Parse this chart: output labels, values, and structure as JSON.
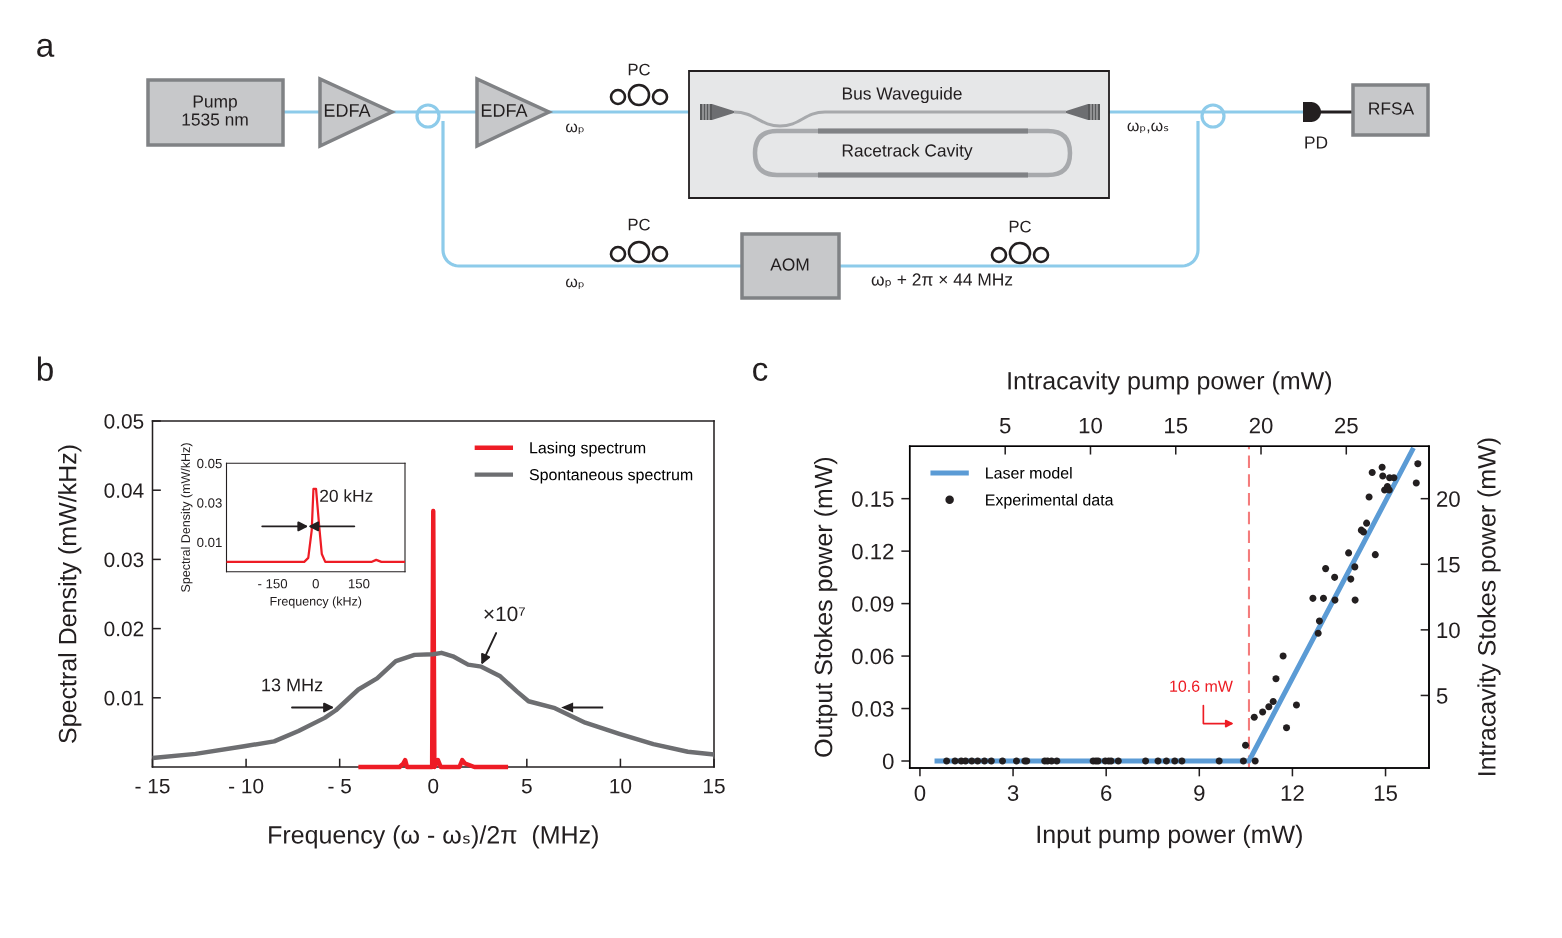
{
  "chart_data": [
    {
      "type": "other",
      "title": "a",
      "annotations": [
        "Pump\n1535 nm",
        "EDFA",
        "EDFA",
        "PC",
        "Bus Waveguide",
        "Racetrack Cavity",
        "ωₚ",
        "ωₚ,ωₛ",
        "PD",
        "RFSA",
        "PC",
        "AOM",
        "ωₚ",
        "ωₚ + 2π × 44 MHz",
        "PC"
      ]
    },
    {
      "type": "line",
      "title": "b",
      "xlabel": "Frequency (ω - ωₛ)/2π  (MHz)",
      "ylabel": "Spectral Density (mW/kHz)",
      "xlim": [
        -15,
        15
      ],
      "xticks": [
        {
          "value": -15,
          "label": "- 15"
        },
        {
          "value": -10,
          "label": "- 10"
        },
        {
          "value": -5,
          "label": "- 5"
        },
        0,
        5,
        10,
        15
      ],
      "ylim": [
        0,
        0.05
      ],
      "yticks": [
        0.01,
        0.02,
        0.03,
        0.04,
        0.05
      ],
      "series": [
        {
          "name": "Lasing spectrum",
          "color": "#ee1c25",
          "x": [
            -4,
            -1.8,
            -1.6,
            -1.5,
            -1.4,
            -0.06,
            0,
            0.06,
            0.25,
            0.4,
            1.4,
            1.55,
            1.7,
            2.2,
            4
          ],
          "values": [
            0,
            0,
            0.0005,
            0.001,
            0,
            0,
            0.037,
            0,
            0.001,
            0,
            0,
            0.001,
            0.0005,
            0,
            0
          ]
        },
        {
          "name": "Spontaneous spectrum",
          "color": "#6d6e71",
          "x": [
            -15,
            -12.7,
            -10.1,
            -8.5,
            -7.2,
            -5.8,
            -5.2,
            -4.0,
            -3.0,
            -2.0,
            -1.0,
            0,
            0.44,
            1.05,
            1.86,
            2.57,
            3.58,
            4.48,
            5.09,
            6.5,
            8.12,
            9.94,
            11.76,
            13.6,
            15
          ],
          "values": [
            0.0013,
            0.0019,
            0.003,
            0.0037,
            0.0052,
            0.0071,
            0.0082,
            0.0112,
            0.0128,
            0.0153,
            0.0162,
            0.0163,
            0.0165,
            0.016,
            0.0148,
            0.0145,
            0.0131,
            0.0109,
            0.0095,
            0.0085,
            0.0064,
            0.0048,
            0.0033,
            0.0022,
            0.0018
          ]
        }
      ],
      "annotations": [
        {
          "text": "13 MHz",
          "x": -5.3,
          "y": 0.0086
        },
        {
          "text": "×10⁷",
          "x": 2.57,
          "y": 0.0148
        }
      ],
      "legend": "top right"
    },
    {
      "type": "line",
      "xlabel": "Frequency (kHz)",
      "ylabel": "Spectral Density (mW/kHz)",
      "xlim": [
        -310,
        310
      ],
      "xticks": [
        {
          "value": -150,
          "label": "- 150"
        },
        0,
        150
      ],
      "ylim": [
        -0.005,
        0.05
      ],
      "yticks": [
        0.01,
        0.03,
        0.05
      ],
      "series": [
        {
          "color": "#ee1c25",
          "x": [
            -310,
            -40,
            -26,
            -14,
            -8,
            1,
            12,
            21,
            33,
            195,
            210,
            228,
            310
          ],
          "values": [
            0,
            0,
            0.002,
            0.016,
            0.037,
            0.037,
            0.018,
            0.004,
            0,
            0,
            0.001,
            0,
            0
          ]
        }
      ],
      "annotations": [
        {
          "text": "20 kHz",
          "x": -26,
          "y": 0.018
        }
      ]
    },
    {
      "type": "scatter",
      "title": "c",
      "xlabel": "Input pump power (mW)",
      "ylabel": "Output Stokes power (mW)",
      "x2label": "Intracavity pump power (mW)",
      "y2label": "Intracavity Stokes power (mW)",
      "xlim": [
        -0.33,
        16.4
      ],
      "xticks": [
        0,
        3,
        6,
        9,
        12,
        15
      ],
      "ylim": [
        -0.004,
        0.18
      ],
      "yticks": [
        0,
        0.03,
        0.06,
        0.09,
        0.12,
        0.15
      ],
      "x2lim": [
        -0.6,
        29.85
      ],
      "x2ticks": [
        5,
        10,
        15,
        20,
        25
      ],
      "y2lim": [
        -0.53,
        24.0
      ],
      "y2ticks": [
        5,
        10,
        15,
        20
      ],
      "series": [
        {
          "name": "Laser model",
          "type": "line",
          "color": "#5b9bd5",
          "x": [
            0.47,
            10.6,
            15.9
          ],
          "values": [
            0,
            0,
            0.179
          ]
        },
        {
          "name": "Experimental data",
          "type": "scatter",
          "marker": "circle",
          "color": "#231f20",
          "x": [
            0.86,
            1.13,
            1.33,
            1.47,
            1.67,
            1.86,
            2.08,
            2.3,
            2.66,
            3.11,
            3.38,
            3.44,
            4.02,
            4.11,
            4.24,
            4.41,
            5.58,
            5.67,
            5.74,
            5.97,
            6.08,
            6.16,
            6.39,
            7.27,
            7.67,
            7.94,
            8.21,
            8.44,
            9.64,
            10.42,
            10.8,
            10.49,
            10.77,
            11.04,
            11.24,
            11.38,
            11.47,
            11.7,
            11.81,
            12.13,
            12.66,
            12.83,
            12.87,
            13.0,
            13.07,
            13.36,
            13.37,
            13.81,
            13.88,
            14.01,
            14.02,
            14.22,
            14.29,
            14.39,
            14.47,
            14.57,
            14.67,
            14.89,
            14.91,
            14.97,
            15.06,
            15.12,
            15.13,
            15.27,
            15.99,
            16.04
          ],
          "values": [
            0,
            0,
            0,
            0,
            0,
            0,
            0,
            0,
            0,
            0,
            0,
            0,
            0,
            0,
            0,
            0,
            0,
            0,
            0,
            0,
            0,
            0,
            0,
            0,
            0,
            0,
            0,
            0,
            0,
            0,
            0,
            0.009,
            0.025,
            0.028,
            0.031,
            0.034,
            0.047,
            0.06,
            0.019,
            0.032,
            0.093,
            0.073,
            0.08,
            0.093,
            0.11,
            0.105,
            0.092,
            0.119,
            0.104,
            0.111,
            0.092,
            0.132,
            0.131,
            0.136,
            0.151,
            0.165,
            0.118,
            0.168,
            0.163,
            0.155,
            0.157,
            0.155,
            0.162,
            0.162,
            0.159,
            0.17
          ]
        }
      ],
      "ref_lines": [
        {
          "axis": "x",
          "value": 10.6,
          "label": "10.6 mW",
          "color": "#f47c7c",
          "line_style": "dashed"
        }
      ],
      "legend": "top left"
    }
  ]
}
